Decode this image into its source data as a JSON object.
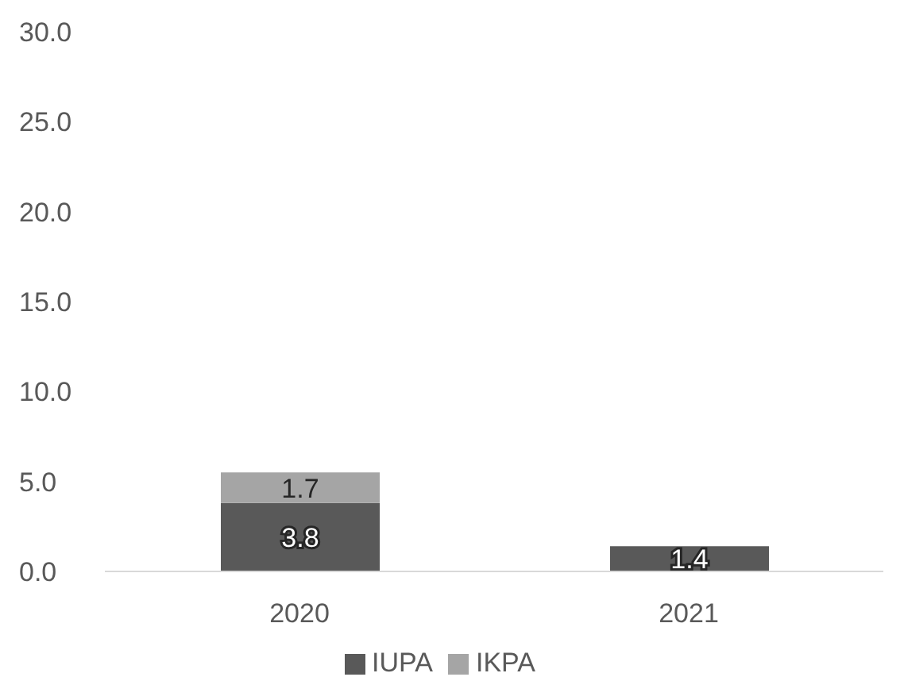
{
  "chart_data": {
    "type": "bar",
    "stacked": true,
    "categories": [
      "2020",
      "2021"
    ],
    "series": [
      {
        "name": "IUPA",
        "color": "#595959",
        "values": [
          3.8,
          1.4
        ]
      },
      {
        "name": "IKPA",
        "color": "#a5a5a5",
        "values": [
          1.7,
          null
        ]
      }
    ],
    "ylim": [
      0,
      30
    ],
    "yticks": [
      {
        "value": 0,
        "label": "0.0"
      },
      {
        "value": 5,
        "label": "5.0"
      },
      {
        "value": 10,
        "label": "10.0"
      },
      {
        "value": 15,
        "label": "15.0"
      },
      {
        "value": 20,
        "label": "20.0"
      },
      {
        "value": 25,
        "label": "25.0"
      },
      {
        "value": 30,
        "label": "30.0"
      }
    ],
    "data_labels": true,
    "legend": "bottom",
    "grid": false
  }
}
